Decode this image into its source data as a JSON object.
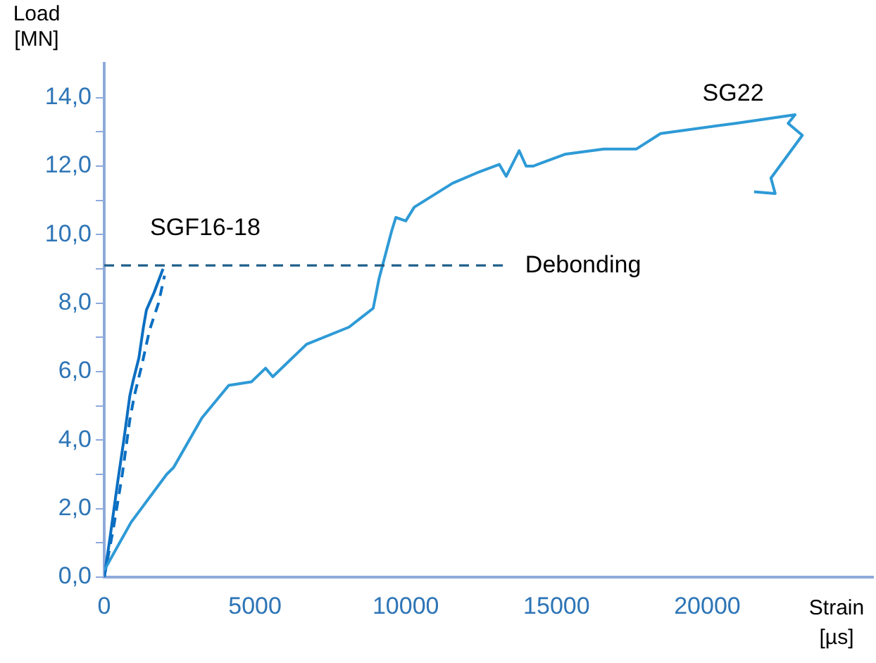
{
  "chart_data": {
    "type": "line",
    "xlabel": "Strain [µs]",
    "ylabel": "Load [MN]",
    "xlim": [
      0,
      25500
    ],
    "xticks": [
      0,
      5000,
      10000,
      15000,
      20000
    ],
    "ylim": [
      0,
      15
    ],
    "yticks": [
      {
        "value": 0,
        "label": "0,0"
      },
      {
        "value": 1,
        "label": null
      },
      {
        "value": 2,
        "label": "2,0"
      },
      {
        "value": 3,
        "label": null
      },
      {
        "value": 4,
        "label": "4,0"
      },
      {
        "value": 5,
        "label": null
      },
      {
        "value": 6,
        "label": "6,0"
      },
      {
        "value": 7,
        "label": null
      },
      {
        "value": 8,
        "label": "8,0"
      },
      {
        "value": 9,
        "label": null
      },
      {
        "value": 10,
        "label": "10,0"
      },
      {
        "value": 11,
        "label": null
      },
      {
        "value": 12,
        "label": "12,0"
      },
      {
        "value": 13,
        "label": null
      },
      {
        "value": 14,
        "label": "14,0"
      }
    ],
    "grid": false,
    "legend": false,
    "marker": "none",
    "series": [
      {
        "name": "SG22",
        "color": "#2e9ad6",
        "line_style": "solid",
        "x": [
          0,
          890,
          2070,
          2300,
          3240,
          4130,
          4880,
          5350,
          5590,
          6710,
          8120,
          8920,
          9110,
          9530,
          9670,
          10000,
          10280,
          11550,
          12350,
          13100,
          13330,
          13760,
          13990,
          14230,
          14370,
          15300,
          16570,
          17650,
          18450,
          20940,
          22910,
          22680,
          23150,
          22110,
          22250,
          21550
        ],
        "values": [
          0.2,
          1.6,
          3.0,
          3.2,
          4.65,
          5.6,
          5.7,
          6.1,
          5.85,
          6.8,
          7.3,
          7.85,
          8.7,
          10.1,
          10.5,
          10.4,
          10.8,
          11.5,
          11.8,
          12.05,
          11.7,
          12.45,
          12.0,
          12.0,
          12.05,
          12.35,
          12.5,
          12.5,
          12.95,
          13.25,
          13.5,
          13.25,
          12.9,
          11.65,
          11.2,
          11.25
        ]
      },
      {
        "name": "SGF16-18",
        "color": "#0a6fc2",
        "line_style": "solid",
        "x": [
          0,
          200,
          450,
          650,
          850,
          950,
          1150,
          1300,
          1400,
          1650,
          1950
        ],
        "values": [
          0,
          1.2,
          2.8,
          4.0,
          5.3,
          5.7,
          6.4,
          7.3,
          7.8,
          8.3,
          9.0
        ]
      },
      {
        "color": "#0a6fc2",
        "line_style": "dashed",
        "x": [
          0,
          300,
          600,
          850,
          1000,
          1250,
          1500,
          1800,
          2000
        ],
        "values": [
          0,
          1.4,
          3.0,
          4.6,
          5.3,
          6.2,
          7.2,
          8.0,
          8.8
        ]
      }
    ],
    "ref_lines": [
      {
        "axis": "y",
        "value": 9.1,
        "label": "Debonding",
        "color": "#1f5f8b",
        "line_style": "dashed"
      }
    ]
  }
}
